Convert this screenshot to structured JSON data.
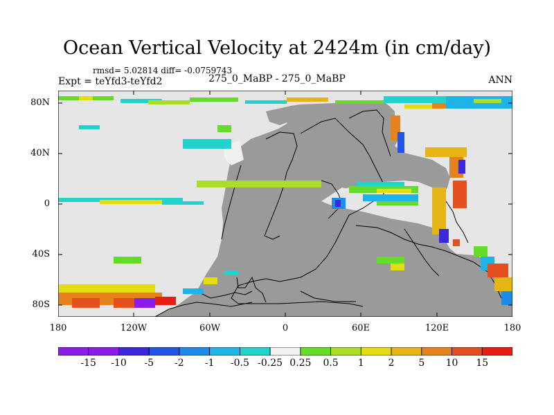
{
  "header": {
    "title": "Ocean Vertical Velocity at 2424m (in cm/day)",
    "stats": "rmsd= 5.02814 diff= -0.0759743",
    "expt": "Expt = teYfd3-teYfd2",
    "period": "275_0_MaBP - 275_0_MaBP",
    "season": "ANN"
  },
  "map": {
    "lat_labels": [
      "80N",
      "40N",
      "0",
      "40S",
      "80S"
    ],
    "lon_labels": [
      "180",
      "120W",
      "60W",
      "0",
      "60E",
      "120E",
      "180"
    ],
    "land_color": "#9a9a9a",
    "ocean_color": "#e6e6e6"
  },
  "colorbar": {
    "labels": [
      "-15",
      "-10",
      "-5",
      "-2",
      "-1",
      "-0.5",
      "-0.25",
      "0.25",
      "0.5",
      "1",
      "2",
      "5",
      "10",
      "15"
    ],
    "colors": [
      "#8a1ee6",
      "#3c28dc",
      "#2055e6",
      "#1e8ce6",
      "#1eb4e6",
      "#22d2cd",
      "#f2f2f2",
      "#64dc28",
      "#aadc28",
      "#e6dc14",
      "#e6b414",
      "#e6821e",
      "#e6501e",
      "#e61e14"
    ]
  }
}
